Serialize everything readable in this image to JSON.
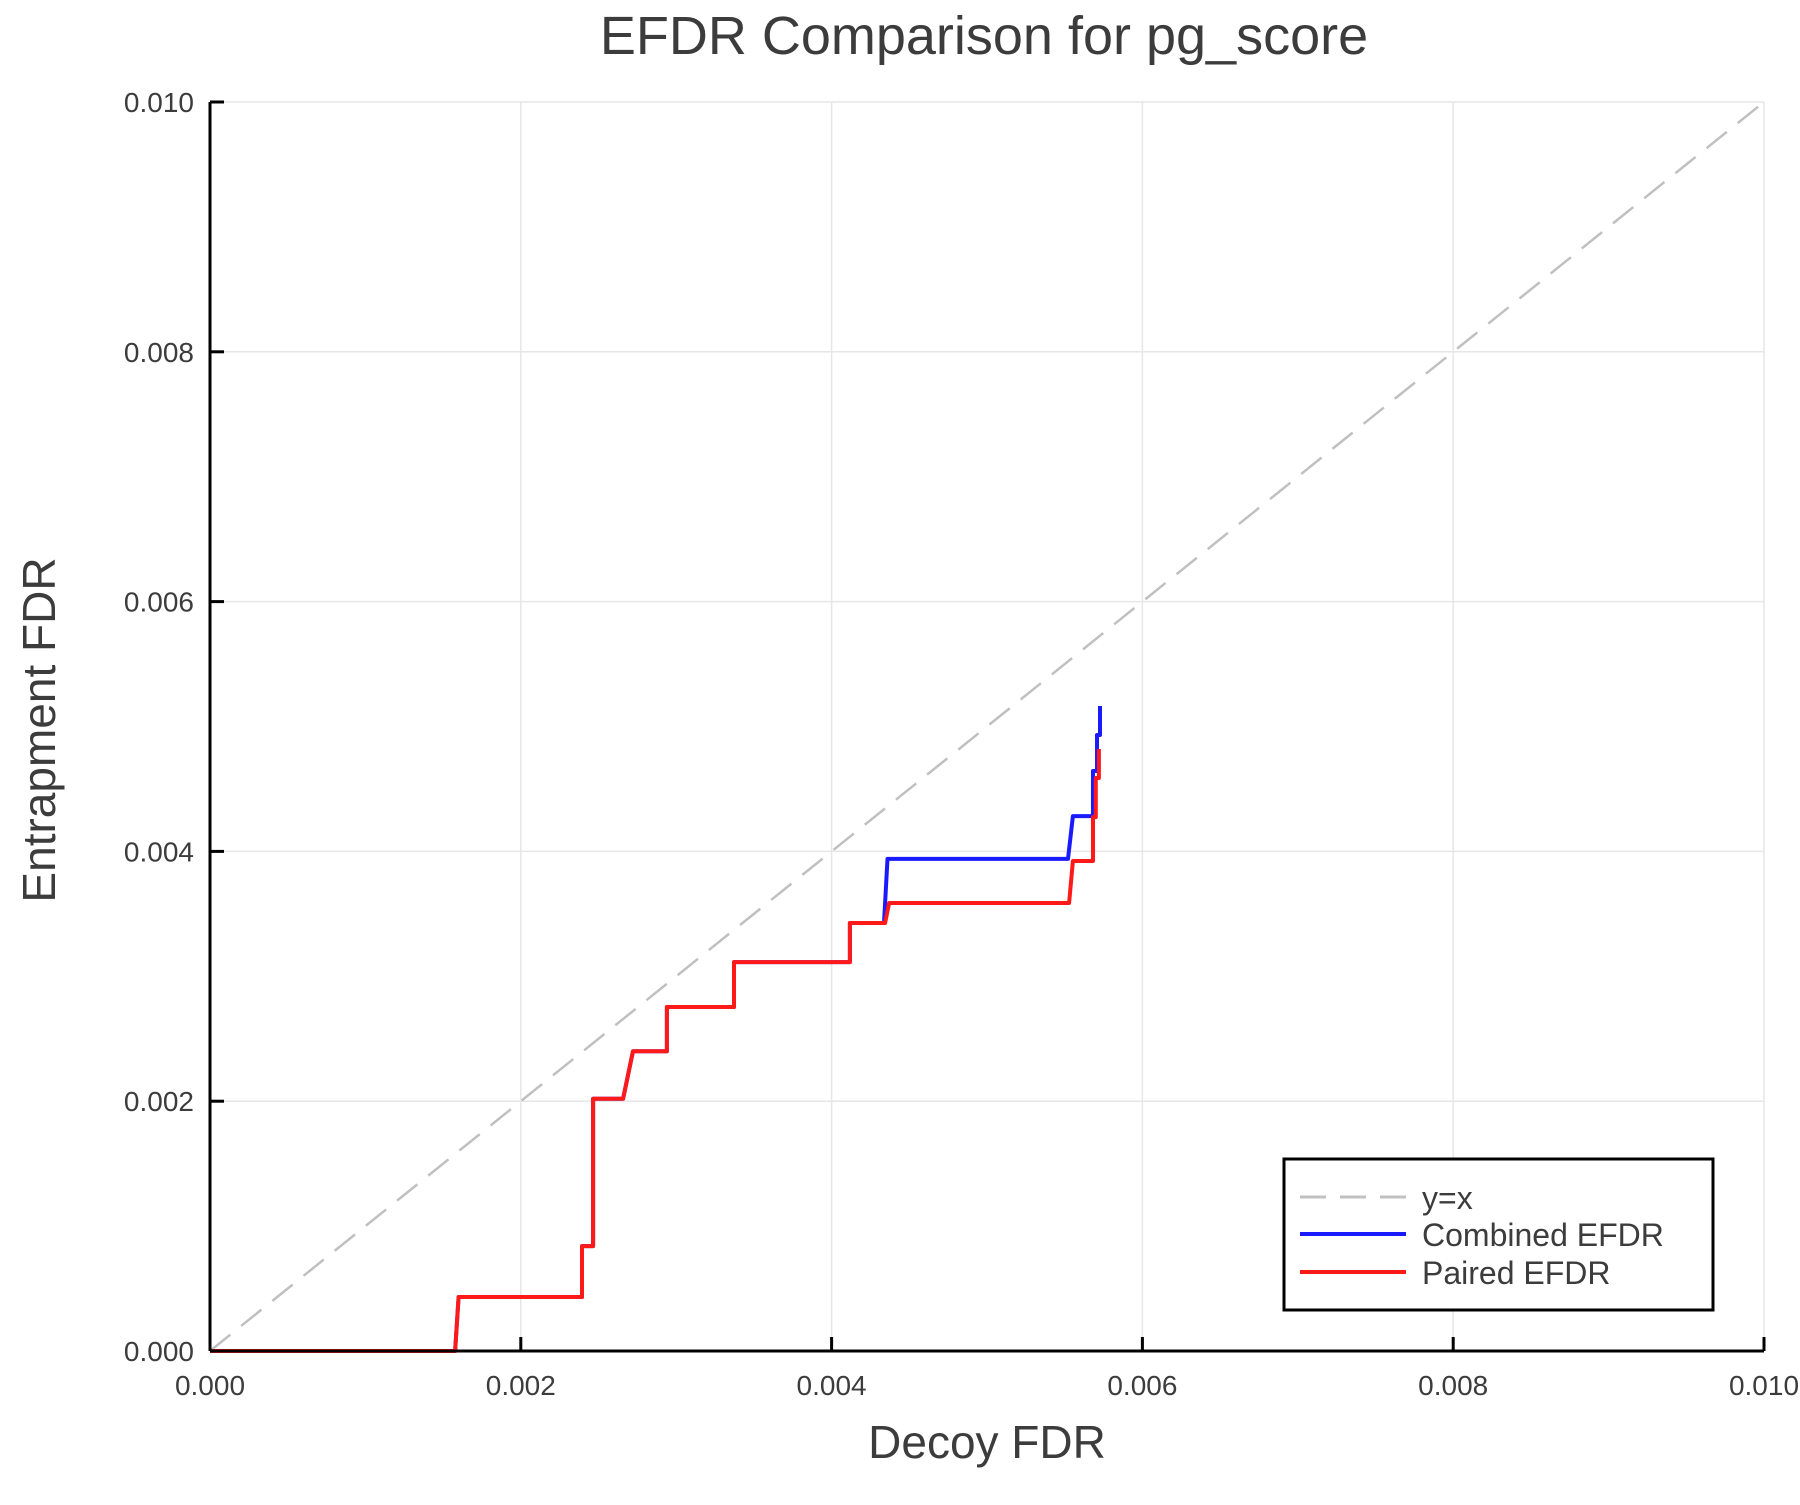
{
  "chart_data": {
    "type": "line",
    "title": "EFDR Comparison for pg_score",
    "xlabel": "Decoy FDR",
    "ylabel": "Entrapment FDR",
    "xlim": [
      0,
      0.01
    ],
    "ylim": [
      0,
      0.01
    ],
    "xticks": [
      "0.000",
      "0.002",
      "0.004",
      "0.006",
      "0.008",
      "0.010"
    ],
    "yticks": [
      "0.000",
      "0.002",
      "0.004",
      "0.006",
      "0.008",
      "0.010"
    ],
    "grid": true,
    "legend_position": "bottom-right",
    "series": [
      {
        "name": "y=x",
        "color": "#c0c0c0",
        "dashed": true,
        "x": [
          0,
          0.01
        ],
        "y": [
          0,
          0.01
        ]
      },
      {
        "name": "Combined EFDR",
        "color": "#1a1aff",
        "dashed": false,
        "x": [
          0,
          0.001577,
          0.0016,
          0.002394,
          0.002394,
          0.002465,
          0.002465,
          0.002658,
          0.002722,
          0.00294,
          0.00294,
          0.003372,
          0.003372,
          0.004118,
          0.004118,
          0.004337,
          0.00436,
          0.005521,
          0.005553,
          0.005682,
          0.005682,
          0.005708,
          0.005708,
          0.005727,
          0.005727
        ],
        "y": [
          0,
          0,
          0.000432,
          0.000432,
          0.00084,
          0.00084,
          0.00202,
          0.00202,
          0.0024,
          0.0024,
          0.002754,
          0.002754,
          0.003114,
          0.003114,
          0.003427,
          0.003427,
          0.00394,
          0.00394,
          0.004283,
          0.004283,
          0.004644,
          0.004644,
          0.004932,
          0.004932,
          0.005164
        ]
      },
      {
        "name": "Paired EFDR",
        "color": "#ff1a1a",
        "dashed": false,
        "x": [
          0,
          0.001577,
          0.0016,
          0.002394,
          0.002394,
          0.002465,
          0.002465,
          0.002658,
          0.002722,
          0.00294,
          0.00294,
          0.003372,
          0.003372,
          0.004118,
          0.004118,
          0.004344,
          0.00437,
          0.005528,
          0.005553,
          0.005682,
          0.005682,
          0.0057,
          0.0057,
          0.00572,
          0.00572
        ],
        "y": [
          0,
          0,
          0.000432,
          0.000432,
          0.00084,
          0.00084,
          0.00202,
          0.00202,
          0.0024,
          0.0024,
          0.002754,
          0.002754,
          0.003114,
          0.003114,
          0.003427,
          0.003427,
          0.003587,
          0.003587,
          0.003923,
          0.003923,
          0.004275,
          0.004275,
          0.004588,
          0.004588,
          0.00482
        ]
      }
    ]
  }
}
